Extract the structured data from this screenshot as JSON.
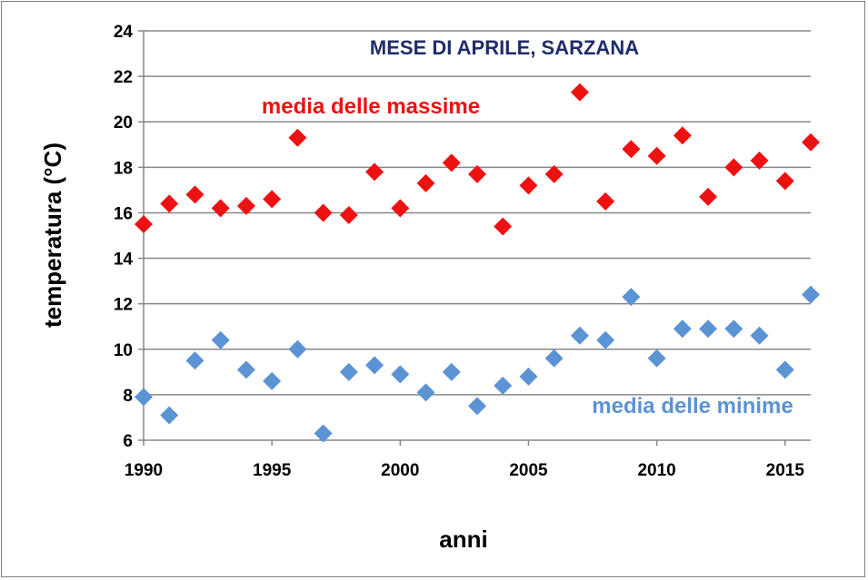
{
  "chart_data": {
    "type": "scatter",
    "title": "MESE DI APRILE, SARZANA",
    "xlabel": "anni",
    "ylabel": "temperatura (°C)",
    "xlim": [
      1990,
      2016
    ],
    "ylim": [
      6,
      24
    ],
    "xticks": [
      1990,
      1995,
      2000,
      2005,
      2010,
      2015
    ],
    "yticks": [
      6,
      8,
      10,
      12,
      14,
      16,
      18,
      20,
      22,
      24
    ],
    "grid": "horizontal",
    "x": [
      1990,
      1991,
      1992,
      1993,
      1994,
      1995,
      1996,
      1997,
      1998,
      1999,
      2000,
      2001,
      2002,
      2003,
      2004,
      2005,
      2006,
      2007,
      2008,
      2009,
      2010,
      2011,
      2012,
      2013,
      2014,
      2015,
      2016
    ],
    "series": [
      {
        "name": "media delle massime",
        "color": "#ee1111",
        "marker": "diamond",
        "values": [
          15.5,
          16.4,
          16.8,
          16.2,
          16.3,
          16.6,
          19.3,
          16.0,
          15.9,
          17.8,
          16.2,
          17.3,
          18.2,
          17.7,
          15.4,
          17.2,
          17.7,
          21.3,
          16.5,
          18.8,
          18.5,
          19.4,
          16.7,
          18.0,
          18.3,
          17.4,
          19.1
        ]
      },
      {
        "name": "media delle minime",
        "color": "#5b93d5",
        "marker": "diamond",
        "values": [
          7.9,
          7.1,
          9.5,
          10.4,
          9.1,
          8.6,
          10.0,
          6.3,
          9.0,
          9.3,
          8.9,
          8.1,
          9.0,
          7.5,
          8.4,
          8.8,
          9.6,
          10.6,
          10.4,
          12.3,
          9.6,
          10.9,
          10.9,
          10.9,
          10.6,
          9.1,
          12.4
        ]
      }
    ],
    "title_color": "#1f2d6b",
    "annotations": [
      {
        "text": "media delle massime",
        "color": "#ee1111",
        "series": 0
      },
      {
        "text": "media delle minime",
        "color": "#5b93d5",
        "series": 1
      }
    ]
  }
}
